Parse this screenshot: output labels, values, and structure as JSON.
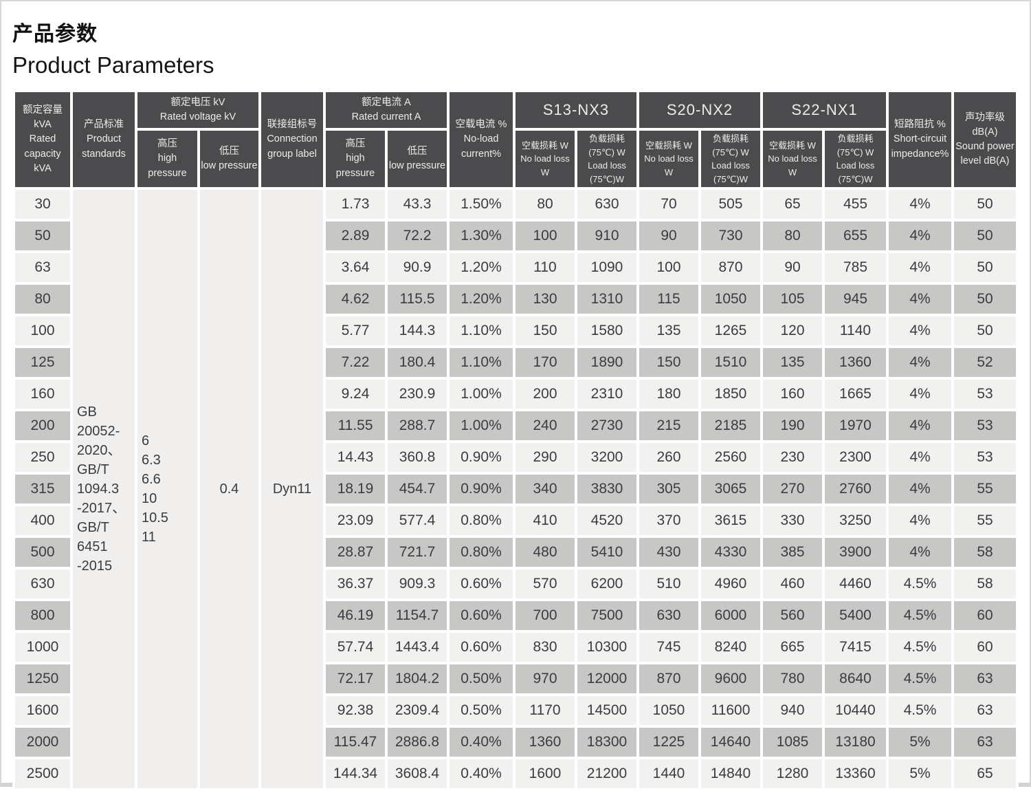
{
  "page": {
    "title_zh": "产品参数",
    "title_en": "Product Parameters"
  },
  "table": {
    "groups": {
      "capacity": "额定容量 kVA\nRated\ncapacity kVA",
      "standards": "产品标准\nProduct\nstandards",
      "voltage": "额定电压 kV\nRated voltage kV",
      "connection": "联接组标号\nConnection\ngroup label",
      "current": "额定电流 A\nRated current A",
      "noload_current": "空载电流 %\nNo-load\ncurrent%",
      "s13": "S13-NX3",
      "s20": "S20-NX2",
      "s22": "S22-NX1",
      "impedance": "短路阻抗 %\nShort-circuit\nimpedance%",
      "sound": "声功率级 dB(A)\nSound power\nlevel dB(A)"
    },
    "subheaders": {
      "high": "高压\nhigh pressure",
      "low": "低压\nlow pressure",
      "noload_loss": "空载损耗 W\nNo load loss W",
      "load_loss": "负载损耗(75℃) W\nLoad loss (75℃)W"
    },
    "merged": {
      "standards": "GB\n20052-\n2020、\nGB/T\n1094.3\n-2017、\nGB/T\n6451\n-2015",
      "high_voltage": "6\n6.3\n6.6\n10\n10.5\n11",
      "low_voltage": "0.4",
      "connection": "Dyn11"
    },
    "rows": [
      [
        "30",
        "1.73",
        "43.3",
        "1.50%",
        "80",
        "630",
        "70",
        "505",
        "65",
        "455",
        "4%",
        "50"
      ],
      [
        "50",
        "2.89",
        "72.2",
        "1.30%",
        "100",
        "910",
        "90",
        "730",
        "80",
        "655",
        "4%",
        "50"
      ],
      [
        "63",
        "3.64",
        "90.9",
        "1.20%",
        "110",
        "1090",
        "100",
        "870",
        "90",
        "785",
        "4%",
        "50"
      ],
      [
        "80",
        "4.62",
        "115.5",
        "1.20%",
        "130",
        "1310",
        "115",
        "1050",
        "105",
        "945",
        "4%",
        "50"
      ],
      [
        "100",
        "5.77",
        "144.3",
        "1.10%",
        "150",
        "1580",
        "135",
        "1265",
        "120",
        "1140",
        "4%",
        "50"
      ],
      [
        "125",
        "7.22",
        "180.4",
        "1.10%",
        "170",
        "1890",
        "150",
        "1510",
        "135",
        "1360",
        "4%",
        "52"
      ],
      [
        "160",
        "9.24",
        "230.9",
        "1.00%",
        "200",
        "2310",
        "180",
        "1850",
        "160",
        "1665",
        "4%",
        "53"
      ],
      [
        "200",
        "11.55",
        "288.7",
        "1.00%",
        "240",
        "2730",
        "215",
        "2185",
        "190",
        "1970",
        "4%",
        "53"
      ],
      [
        "250",
        "14.43",
        "360.8",
        "0.90%",
        "290",
        "3200",
        "260",
        "2560",
        "230",
        "2300",
        "4%",
        "53"
      ],
      [
        "315",
        "18.19",
        "454.7",
        "0.90%",
        "340",
        "3830",
        "305",
        "3065",
        "270",
        "2760",
        "4%",
        "55"
      ],
      [
        "400",
        "23.09",
        "577.4",
        "0.80%",
        "410",
        "4520",
        "370",
        "3615",
        "330",
        "3250",
        "4%",
        "55"
      ],
      [
        "500",
        "28.87",
        "721.7",
        "0.80%",
        "480",
        "5410",
        "430",
        "4330",
        "385",
        "3900",
        "4%",
        "58"
      ],
      [
        "630",
        "36.37",
        "909.3",
        "0.60%",
        "570",
        "6200",
        "510",
        "4960",
        "460",
        "4460",
        "4.5%",
        "58"
      ],
      [
        "800",
        "46.19",
        "1154.7",
        "0.60%",
        "700",
        "7500",
        "630",
        "6000",
        "560",
        "5400",
        "4.5%",
        "60"
      ],
      [
        "1000",
        "57.74",
        "1443.4",
        "0.60%",
        "830",
        "10300",
        "745",
        "8240",
        "665",
        "7415",
        "4.5%",
        "60"
      ],
      [
        "1250",
        "72.17",
        "1804.2",
        "0.50%",
        "970",
        "12000",
        "870",
        "9600",
        "780",
        "8640",
        "4.5%",
        "63"
      ],
      [
        "1600",
        "92.38",
        "2309.4",
        "0.50%",
        "1170",
        "14500",
        "1050",
        "11600",
        "940",
        "10440",
        "4.5%",
        "63"
      ],
      [
        "2000",
        "115.47",
        "2886.8",
        "0.40%",
        "1360",
        "18300",
        "1225",
        "14640",
        "1085",
        "13180",
        "5%",
        "63"
      ],
      [
        "2500",
        "144.34",
        "3608.4",
        "0.40%",
        "1600",
        "21200",
        "1440",
        "14840",
        "1280",
        "13360",
        "5%",
        "65"
      ]
    ]
  },
  "colors": {
    "header_bg": "#4b4b4d",
    "row_light": "#f1f1ef",
    "row_dark": "#c7c7c6",
    "merged_bg": "#f0efee"
  }
}
